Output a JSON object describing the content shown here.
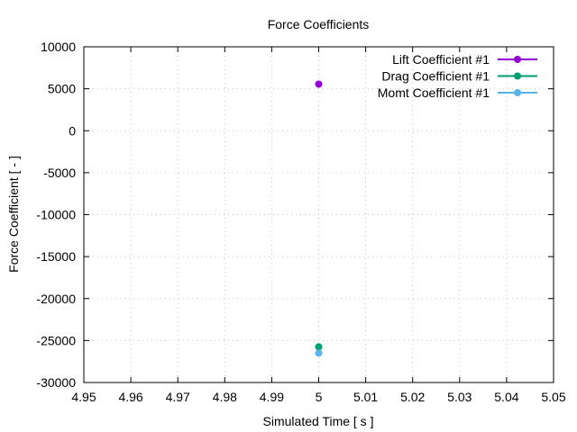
{
  "chart_data": {
    "type": "line",
    "title": "Force Coefficients",
    "xlabel": "Simulated Time [ s ]",
    "ylabel": "Force Coefficient [ - ]",
    "xlim": [
      4.95,
      5.05
    ],
    "ylim": [
      -30000,
      10000
    ],
    "xticks": [
      "4.95",
      "4.96",
      "4.97",
      "4.98",
      "4.99",
      "5",
      "5.01",
      "5.02",
      "5.03",
      "5.04",
      "5.05"
    ],
    "yticks": [
      "10000",
      "5000",
      "0",
      "-5000",
      "-10000",
      "-15000",
      "-20000",
      "-25000",
      "-30000"
    ],
    "grid": true,
    "legend_position": "top-right",
    "series": [
      {
        "name": "Lift Coefficient #1",
        "color": "#9400d3",
        "x": [
          5
        ],
        "y": [
          5550
        ]
      },
      {
        "name": "Drag Coefficient #1",
        "color": "#009e73",
        "x": [
          5
        ],
        "y": [
          -25750
        ]
      },
      {
        "name": "Momt Coefficient #1",
        "color": "#56b4e9",
        "x": [
          5
        ],
        "y": [
          -26500
        ]
      }
    ]
  }
}
